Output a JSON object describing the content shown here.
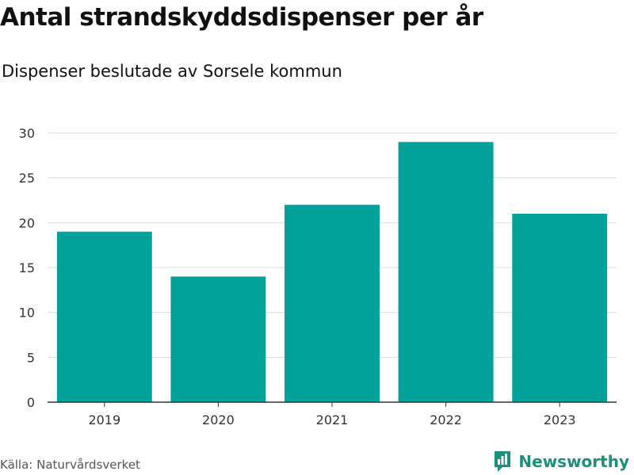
{
  "header": {
    "title": "Antal strandskyddsdispenser per år",
    "subtitle": "Dispenser beslutade av Sorsele kommun"
  },
  "footer": {
    "source": "Källa: Naturvårdsverket",
    "brand": "Newsworthy",
    "brand_icon": "newsworthy-logo-icon"
  },
  "colors": {
    "bar": "#00A29A",
    "grid": "#dddddd",
    "axis": "#333333",
    "brand": "#1c8f7a"
  },
  "chart_data": {
    "type": "bar",
    "title": "Antal strandskyddsdispenser per år",
    "subtitle": "Dispenser beslutade av Sorsele kommun",
    "categories": [
      "2019",
      "2020",
      "2021",
      "2022",
      "2023"
    ],
    "values": [
      19,
      14,
      22,
      29,
      21
    ],
    "xlabel": "",
    "ylabel": "",
    "ylim": [
      0,
      30
    ],
    "yticks": [
      0,
      5,
      10,
      15,
      20,
      25,
      30
    ],
    "grid": true,
    "legend": "none"
  }
}
